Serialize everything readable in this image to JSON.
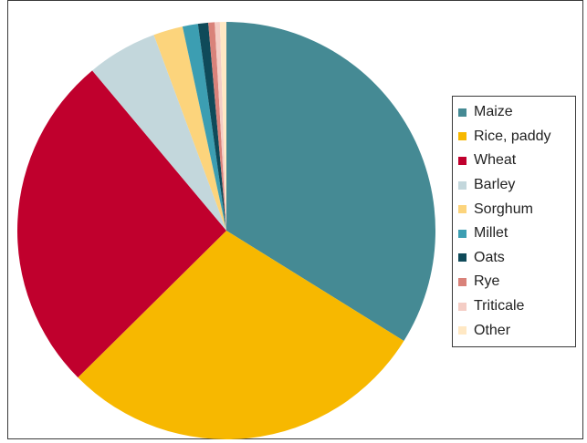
{
  "chart_data": {
    "type": "pie",
    "title": "",
    "start_angle_deg": 0,
    "direction": "clockwise",
    "legend_position": "right",
    "slices": [
      {
        "label": "Maize",
        "value": 34.2,
        "color": "#458A94"
      },
      {
        "label": "Rice, paddy",
        "value": 29.0,
        "color": "#F7B800"
      },
      {
        "label": "Wheat",
        "value": 26.6,
        "color": "#C0002D"
      },
      {
        "label": "Barley",
        "value": 5.5,
        "color": "#C3D7DC"
      },
      {
        "label": "Sorghum",
        "value": 2.3,
        "color": "#FCD47C"
      },
      {
        "label": "Millet",
        "value": 1.2,
        "color": "#3C9EB2"
      },
      {
        "label": "Oats",
        "value": 0.8,
        "color": "#0F4A59"
      },
      {
        "label": "Rye",
        "value": 0.5,
        "color": "#D9827A"
      },
      {
        "label": "Triticale",
        "value": 0.4,
        "color": "#F4CDC5"
      },
      {
        "label": "Other",
        "value": 0.5,
        "color": "#FFE8C4"
      }
    ]
  }
}
